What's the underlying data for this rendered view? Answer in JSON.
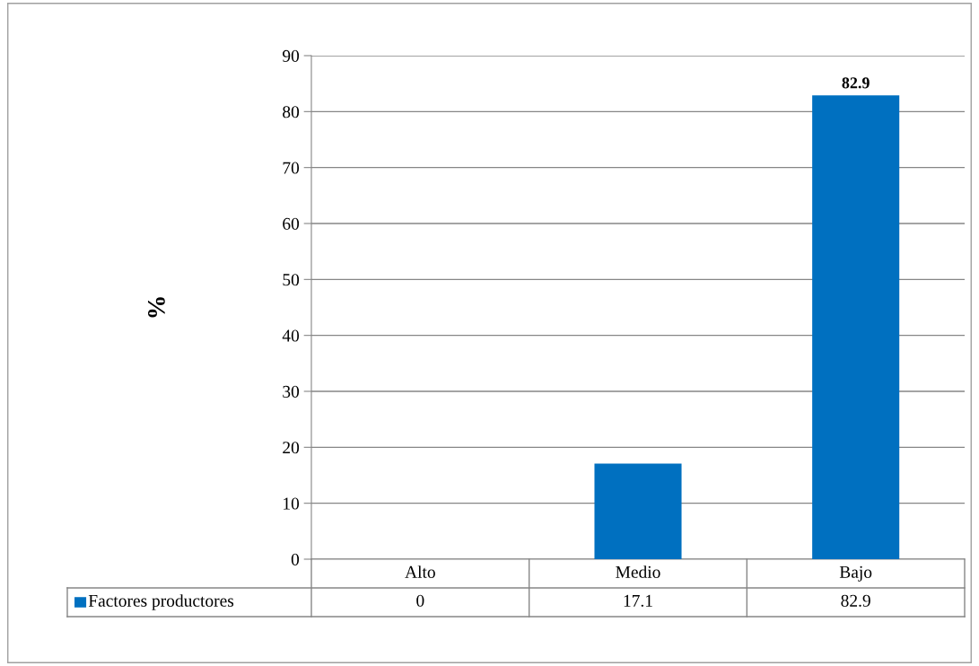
{
  "chart_data": {
    "type": "bar",
    "ylabel": "%",
    "categories": [
      "Alto",
      "Medio",
      "Bajo"
    ],
    "series": [
      {
        "name": "Factores productores",
        "color": "#0070c0",
        "values": [
          0,
          17.1,
          82.9
        ],
        "value_labels": [
          "0",
          "17.1",
          "82.9"
        ]
      }
    ],
    "annotations": [
      {
        "text": "82.9",
        "x": "Bajo",
        "y": 82.9
      }
    ],
    "ylim": [
      0,
      90
    ],
    "yticks": [
      0,
      10,
      20,
      30,
      40,
      50,
      60,
      70,
      80,
      90
    ],
    "grid": "y",
    "legend": "bottom"
  }
}
